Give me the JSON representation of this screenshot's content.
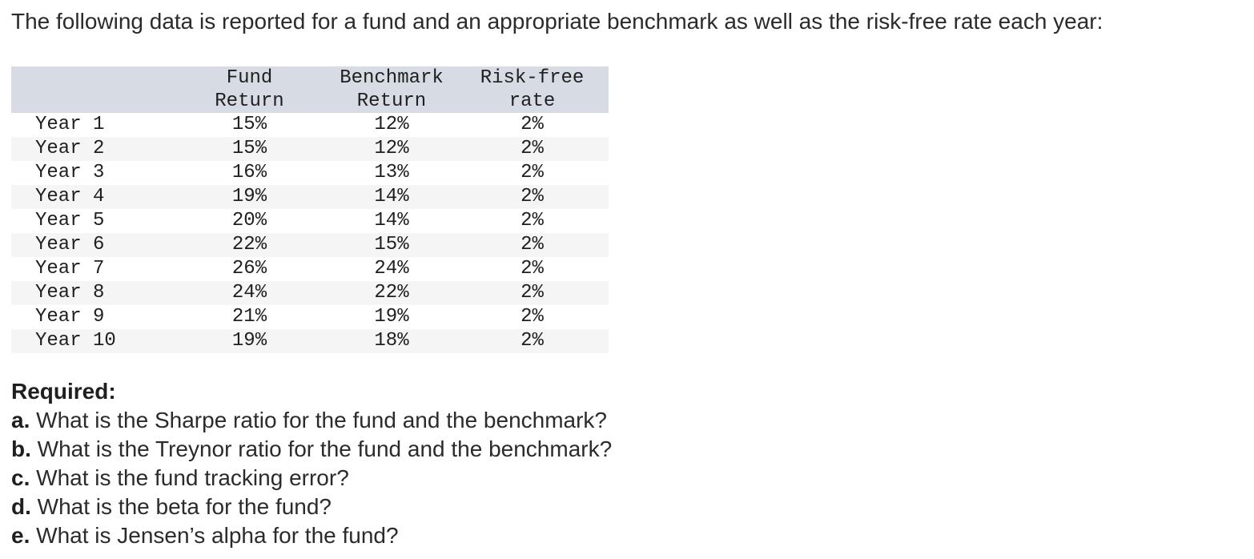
{
  "intro": "The following data is reported for a fund and an appropriate benchmark as well as the risk-free rate each year:",
  "table": {
    "headers": {
      "label": "",
      "fund": "Fund\nReturn",
      "benchmark": "Benchmark\nReturn",
      "risk_free": "Risk-free\nrate"
    },
    "rows": [
      {
        "label": "Year 1",
        "fund": "15%",
        "benchmark": "12%",
        "risk_free": "2%"
      },
      {
        "label": "Year 2",
        "fund": "15%",
        "benchmark": "12%",
        "risk_free": "2%"
      },
      {
        "label": "Year 3",
        "fund": "16%",
        "benchmark": "13%",
        "risk_free": "2%"
      },
      {
        "label": "Year 4",
        "fund": "19%",
        "benchmark": "14%",
        "risk_free": "2%"
      },
      {
        "label": "Year 5",
        "fund": "20%",
        "benchmark": "14%",
        "risk_free": "2%"
      },
      {
        "label": "Year 6",
        "fund": "22%",
        "benchmark": "15%",
        "risk_free": "2%"
      },
      {
        "label": "Year 7",
        "fund": "26%",
        "benchmark": "24%",
        "risk_free": "2%"
      },
      {
        "label": "Year 8",
        "fund": "24%",
        "benchmark": "22%",
        "risk_free": "2%"
      },
      {
        "label": "Year 9",
        "fund": "21%",
        "benchmark": "19%",
        "risk_free": "2%"
      },
      {
        "label": "Year 10",
        "fund": "19%",
        "benchmark": "18%",
        "risk_free": "2%"
      }
    ]
  },
  "required": {
    "heading": "Required:",
    "items": [
      {
        "prefix": "a.",
        "text": "What is the Sharpe ratio for the fund and the benchmark?"
      },
      {
        "prefix": "b.",
        "text": "What is the Treynor ratio for the fund and the benchmark?"
      },
      {
        "prefix": "c.",
        "text": "What is the fund tracking error?"
      },
      {
        "prefix": "d.",
        "text": "What is the beta for the fund?"
      },
      {
        "prefix": "e.",
        "text": "What is Jensen’s alpha for the fund?"
      }
    ]
  },
  "colors": {
    "table_header_bg": "#d6dbe4",
    "table_stripe_bg": "#f5f5f6",
    "text": "#2b2b2b"
  }
}
